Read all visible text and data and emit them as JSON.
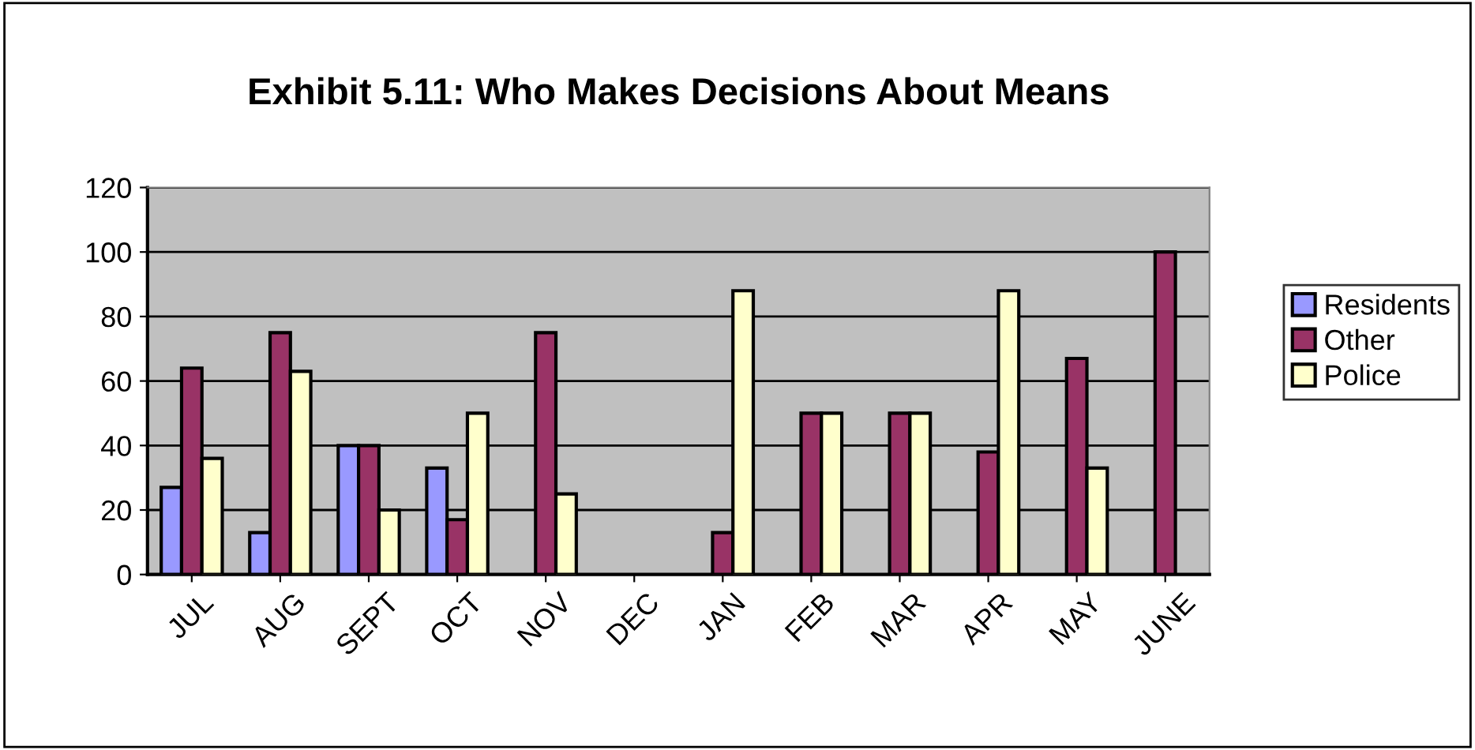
{
  "chart_data": {
    "type": "bar",
    "title": "Exhibit 5.11: Who Makes Decisions About Means",
    "categories": [
      "JUL",
      "AUG",
      "SEPT",
      "OCT",
      "NOV",
      "DEC",
      "JAN",
      "FEB",
      "MAR",
      "APR",
      "MAY",
      "JUNE"
    ],
    "series": [
      {
        "name": "Residents",
        "color": "#9999ff",
        "values": [
          27,
          13,
          40,
          33,
          null,
          null,
          null,
          null,
          null,
          null,
          null,
          null
        ]
      },
      {
        "name": "Other",
        "color": "#993366",
        "values": [
          64,
          75,
          40,
          17,
          75,
          null,
          13,
          50,
          50,
          38,
          67,
          100
        ]
      },
      {
        "name": "Police",
        "color": "#ffffcc",
        "values": [
          36,
          63,
          20,
          50,
          25,
          null,
          88,
          50,
          50,
          88,
          33,
          null
        ]
      }
    ],
    "ylim": [
      0,
      120
    ],
    "yticks": [
      0,
      20,
      40,
      60,
      80,
      100,
      120
    ],
    "grid": "y",
    "legend": "right"
  }
}
